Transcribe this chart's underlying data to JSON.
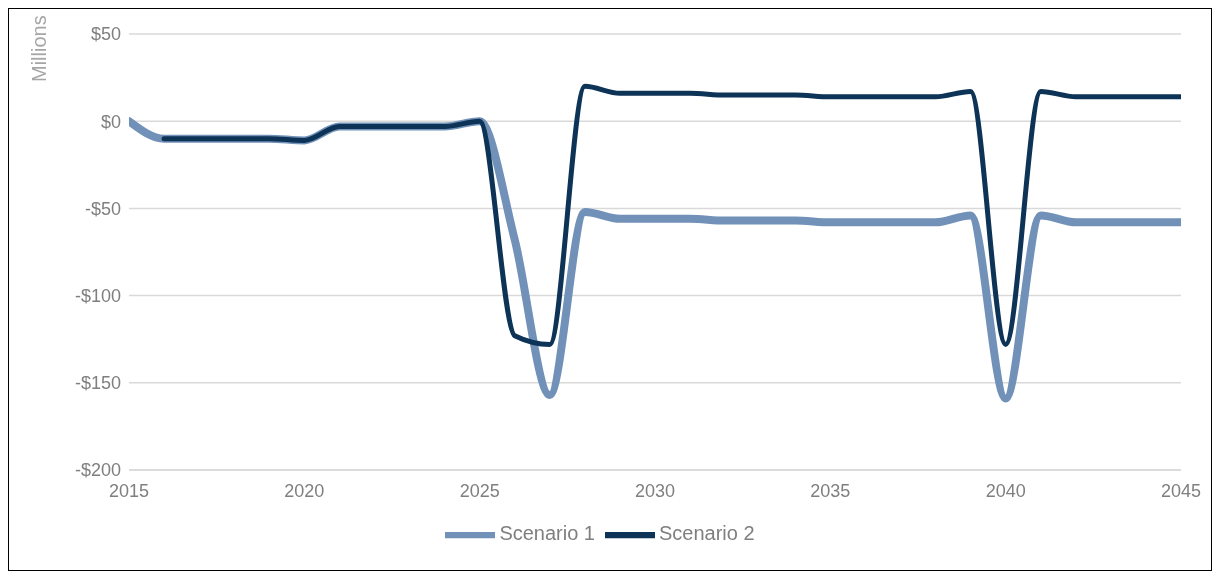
{
  "chart_data": {
    "type": "line",
    "ylabel": "Millions",
    "x": [
      2015,
      2016,
      2017,
      2018,
      2019,
      2020,
      2021,
      2022,
      2023,
      2024,
      2025,
      2026,
      2027,
      2028,
      2029,
      2030,
      2031,
      2032,
      2033,
      2034,
      2035,
      2036,
      2037,
      2038,
      2039,
      2040,
      2041,
      2042,
      2043,
      2044,
      2045
    ],
    "series": [
      {
        "name": "Scenario 1",
        "color": "#7191b8",
        "values": [
          0,
          -10,
          -10,
          -10,
          -10,
          -11,
          -3,
          -3,
          -3,
          -3,
          0,
          -68,
          -157,
          -52,
          -56,
          -56,
          -56,
          -57,
          -57,
          -57,
          -58,
          -58,
          -58,
          -58,
          -54,
          -159,
          -54,
          -58,
          -58,
          -58,
          -58
        ]
      },
      {
        "name": "Scenario 2",
        "color": "#0d3356",
        "values": [
          null,
          -10,
          -10,
          -10,
          -10,
          -11,
          -3,
          -3,
          -3,
          -3,
          0,
          -123,
          -128,
          20,
          16,
          16,
          16,
          15,
          15,
          15,
          14,
          14,
          14,
          14,
          17,
          -128,
          17,
          14,
          14,
          14,
          14
        ]
      }
    ],
    "xlim": [
      2015,
      2045
    ],
    "xticks": [
      2015,
      2020,
      2025,
      2030,
      2035,
      2040,
      2045
    ],
    "ylim": [
      -200,
      50
    ],
    "yticks": [
      {
        "value": -200,
        "label": "-$200"
      },
      {
        "value": -150,
        "label": "-$150"
      },
      {
        "value": -100,
        "label": "-$100"
      },
      {
        "value": -50,
        "label": "-$50"
      },
      {
        "value": 0,
        "label": "$0"
      },
      {
        "value": 50,
        "label": "$50"
      }
    ],
    "grid": "y",
    "legend": "bottom",
    "marker": "none",
    "line_style": "solid"
  }
}
